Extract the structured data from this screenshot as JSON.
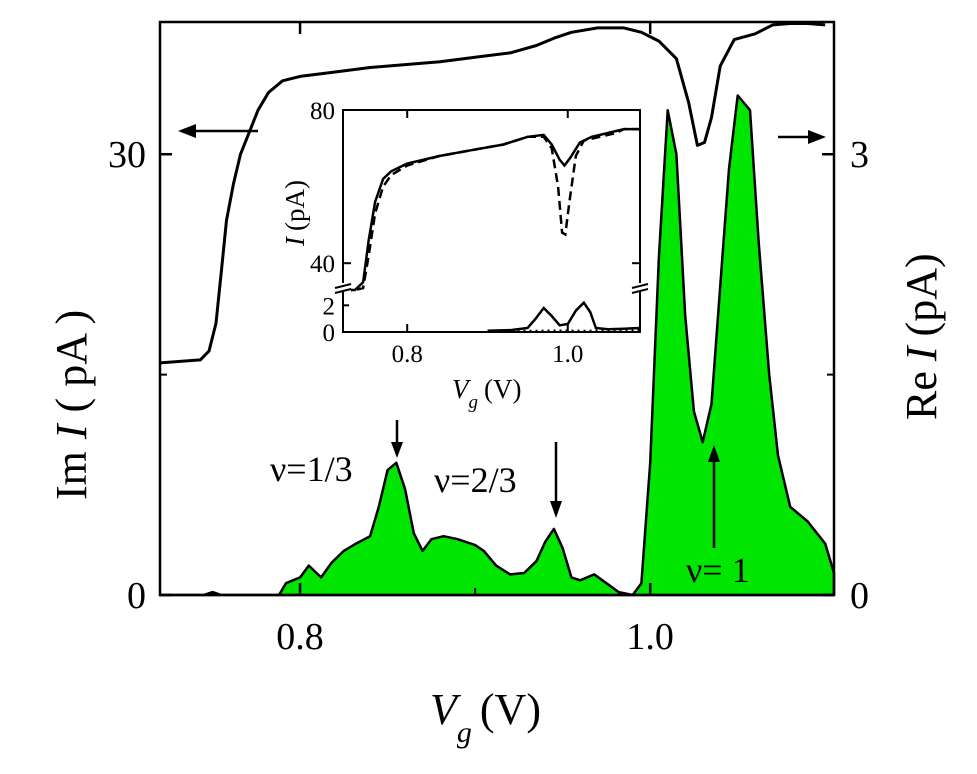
{
  "chart_data": {
    "type": "line",
    "x_label": {
      "symbol": "V",
      "subscript": "g",
      "unit": "(V)"
    },
    "left_y_label": {
      "prefix": "Im",
      "symbol": "I",
      "unit": "( pA )"
    },
    "right_y_label": {
      "prefix": "Re",
      "symbol": "I",
      "unit": "(pA)"
    },
    "x_range": [
      0.72,
      1.105
    ],
    "left_y_range": [
      0,
      39
    ],
    "right_y_range": [
      0,
      3.9
    ],
    "x_ticks": [
      {
        "value": 0.8,
        "label": "0.8"
      },
      {
        "value": 1.0,
        "label": "1.0"
      }
    ],
    "left_y_ticks": [
      {
        "value": 0,
        "label": "0"
      },
      {
        "value": 30,
        "label": "30"
      }
    ],
    "right_y_ticks": [
      {
        "value": 0,
        "label": "0"
      },
      {
        "value": 3,
        "label": "3"
      }
    ],
    "series": [
      {
        "style": "solid-line",
        "color": "#000000",
        "axis": "left",
        "points": [
          [
            0.72,
            15.8
          ],
          [
            0.743,
            16.0
          ],
          [
            0.748,
            16.6
          ],
          [
            0.752,
            18.5
          ],
          [
            0.755,
            22.0
          ],
          [
            0.758,
            25.5
          ],
          [
            0.762,
            28.0
          ],
          [
            0.766,
            30.0
          ],
          [
            0.771,
            31.5
          ],
          [
            0.776,
            33.0
          ],
          [
            0.782,
            34.2
          ],
          [
            0.79,
            35.0
          ],
          [
            0.8,
            35.3
          ],
          [
            0.82,
            35.6
          ],
          [
            0.84,
            35.9
          ],
          [
            0.86,
            36.1
          ],
          [
            0.88,
            36.3
          ],
          [
            0.9,
            36.6
          ],
          [
            0.92,
            36.9
          ],
          [
            0.935,
            37.4
          ],
          [
            0.945,
            37.9
          ],
          [
            0.955,
            38.3
          ],
          [
            0.97,
            38.6
          ],
          [
            0.985,
            38.6
          ],
          [
            0.995,
            38.3
          ],
          [
            1.005,
            37.7
          ],
          [
            1.015,
            36.5
          ],
          [
            1.022,
            33.5
          ],
          [
            1.027,
            30.6
          ],
          [
            1.031,
            30.8
          ],
          [
            1.035,
            32.5
          ],
          [
            1.04,
            36.0
          ],
          [
            1.048,
            37.8
          ],
          [
            1.06,
            38.2
          ],
          [
            1.07,
            38.8
          ],
          [
            1.08,
            38.9
          ],
          [
            1.09,
            38.9
          ],
          [
            1.1,
            38.8
          ]
        ]
      },
      {
        "style": "green-filled-area",
        "color": "#00e600",
        "axis": "right",
        "points": [
          [
            0.72,
            0.0
          ],
          [
            0.745,
            0.0
          ],
          [
            0.75,
            0.02
          ],
          [
            0.755,
            0.0
          ],
          [
            0.788,
            0.0
          ],
          [
            0.792,
            0.08
          ],
          [
            0.8,
            0.12
          ],
          [
            0.805,
            0.2
          ],
          [
            0.812,
            0.12
          ],
          [
            0.818,
            0.22
          ],
          [
            0.825,
            0.3
          ],
          [
            0.832,
            0.35
          ],
          [
            0.84,
            0.4
          ],
          [
            0.845,
            0.6
          ],
          [
            0.85,
            0.85
          ],
          [
            0.855,
            0.9
          ],
          [
            0.86,
            0.72
          ],
          [
            0.865,
            0.42
          ],
          [
            0.87,
            0.3
          ],
          [
            0.875,
            0.38
          ],
          [
            0.882,
            0.4
          ],
          [
            0.89,
            0.38
          ],
          [
            0.9,
            0.34
          ],
          [
            0.905,
            0.3
          ],
          [
            0.912,
            0.2
          ],
          [
            0.92,
            0.14
          ],
          [
            0.928,
            0.15
          ],
          [
            0.935,
            0.23
          ],
          [
            0.94,
            0.36
          ],
          [
            0.945,
            0.45
          ],
          [
            0.95,
            0.32
          ],
          [
            0.955,
            0.12
          ],
          [
            0.96,
            0.1
          ],
          [
            0.968,
            0.14
          ],
          [
            0.975,
            0.08
          ],
          [
            0.982,
            0.02
          ],
          [
            0.99,
            0.0
          ],
          [
            0.995,
            0.08
          ],
          [
            1.0,
            0.9
          ],
          [
            1.005,
            2.3
          ],
          [
            1.01,
            3.3
          ],
          [
            1.015,
            3.0
          ],
          [
            1.02,
            1.9
          ],
          [
            1.025,
            1.25
          ],
          [
            1.03,
            1.04
          ],
          [
            1.035,
            1.3
          ],
          [
            1.04,
            2.1
          ],
          [
            1.045,
            2.9
          ],
          [
            1.05,
            3.4
          ],
          [
            1.057,
            3.3
          ],
          [
            1.062,
            2.4
          ],
          [
            1.068,
            1.5
          ],
          [
            1.073,
            0.95
          ],
          [
            1.08,
            0.6
          ],
          [
            1.09,
            0.5
          ],
          [
            1.1,
            0.35
          ],
          [
            1.105,
            0.15
          ]
        ]
      }
    ],
    "annotations": [
      {
        "text": "ν=1/3",
        "x": 0.855
      },
      {
        "text": "ν=2/3",
        "x": 0.945
      },
      {
        "text": "ν= 1",
        "x": 1.03
      }
    ],
    "inset": {
      "x_label": {
        "symbol": "V",
        "subscript": "g",
        "unit": "(V)"
      },
      "y_label": {
        "symbol": "I",
        "unit": "(pA)"
      },
      "x_range": [
        0.72,
        1.09
      ],
      "x_ticks": [
        {
          "value": 0.8,
          "label": "0.8"
        },
        {
          "value": 1.0,
          "label": "1.0"
        }
      ],
      "y_ticks_upper": [
        {
          "value": 40,
          "label": "40"
        },
        {
          "value": 80,
          "label": "80"
        }
      ],
      "y_ticks_lower": [
        {
          "value": 0,
          "label": "0"
        },
        {
          "value": 2,
          "label": "2"
        }
      ],
      "upper_y_range": [
        33,
        80
      ],
      "lower_y_range": [
        0,
        3
      ],
      "series": [
        {
          "style": "solid",
          "points": [
            [
              0.72,
              31.5
            ],
            [
              0.735,
              32.5
            ],
            [
              0.745,
              35
            ],
            [
              0.752,
              46
            ],
            [
              0.76,
              56
            ],
            [
              0.77,
              62
            ],
            [
              0.78,
              64
            ],
            [
              0.8,
              66
            ],
            [
              0.84,
              68
            ],
            [
              0.88,
              69.5
            ],
            [
              0.92,
              71
            ],
            [
              0.95,
              73
            ],
            [
              0.97,
              73.5
            ],
            [
              0.98,
              71
            ],
            [
              0.99,
              67
            ],
            [
              0.996,
              65.5
            ],
            [
              1.003,
              67.5
            ],
            [
              1.015,
              71.5
            ],
            [
              1.03,
              73
            ],
            [
              1.05,
              74
            ],
            [
              1.07,
              75
            ],
            [
              1.09,
              75
            ]
          ]
        },
        {
          "style": "dashed",
          "points": [
            [
              0.72,
              30.5
            ],
            [
              0.735,
              31.5
            ],
            [
              0.745,
              33.5
            ],
            [
              0.752,
              42
            ],
            [
              0.76,
              53
            ],
            [
              0.77,
              60
            ],
            [
              0.78,
              63
            ],
            [
              0.8,
              65.5
            ],
            [
              0.84,
              68
            ],
            [
              0.88,
              69.5
            ],
            [
              0.92,
              71
            ],
            [
              0.95,
              73
            ],
            [
              0.97,
              73
            ],
            [
              0.98,
              70
            ],
            [
              0.988,
              60
            ],
            [
              0.993,
              48
            ],
            [
              0.997,
              47.5
            ],
            [
              1.002,
              56
            ],
            [
              1.01,
              68
            ],
            [
              1.02,
              72
            ],
            [
              1.04,
              73
            ],
            [
              1.06,
              74
            ],
            [
              1.07,
              75
            ],
            [
              1.09,
              75
            ]
          ]
        },
        {
          "style": "solid-lower",
          "points": [
            [
              0.9,
              0.1
            ],
            [
              0.93,
              0.15
            ],
            [
              0.95,
              0.3
            ],
            [
              0.96,
              1.0
            ],
            [
              0.97,
              1.8
            ],
            [
              0.98,
              1.2
            ],
            [
              0.99,
              0.5
            ],
            [
              1.0,
              0.6
            ],
            [
              1.01,
              1.6
            ],
            [
              1.02,
              2.2
            ],
            [
              1.028,
              1.5
            ],
            [
              1.035,
              0.3
            ],
            [
              1.05,
              0.2
            ],
            [
              1.07,
              0.25
            ],
            [
              1.09,
              0.3
            ]
          ]
        },
        {
          "style": "dotted-lower",
          "points": [
            [
              0.9,
              0.05
            ],
            [
              0.93,
              0.08
            ],
            [
              0.96,
              0.1
            ],
            [
              0.99,
              0.12
            ],
            [
              1.02,
              0.1
            ],
            [
              1.05,
              0.12
            ],
            [
              1.09,
              0.15
            ]
          ]
        }
      ]
    }
  }
}
